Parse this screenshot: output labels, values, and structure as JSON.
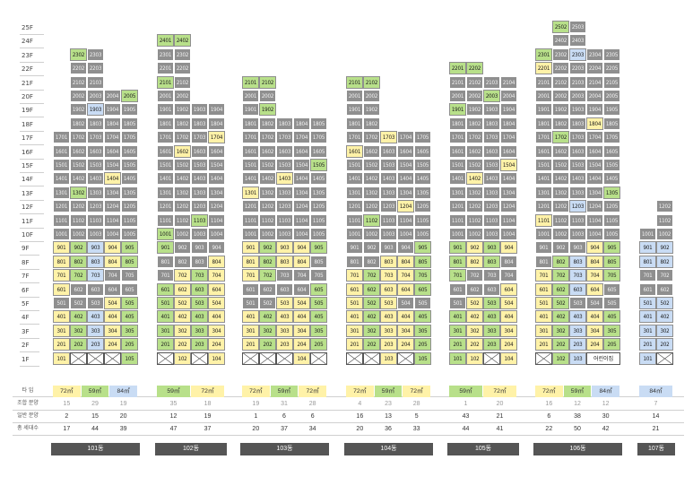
{
  "floors": [
    "25F",
    "24F",
    "23F",
    "22F",
    "21F",
    "20F",
    "19F",
    "18F",
    "17F",
    "16F",
    "15F",
    "14F",
    "13F",
    "12F",
    "11F",
    "10F",
    "9F",
    "8F",
    "7F",
    "6F",
    "5F",
    "4F",
    "3F",
    "2F",
    "1F"
  ],
  "legend_colors": {
    "gray": "#8f8f8f",
    "yellow": "#fff2a8",
    "green": "#b8e08a",
    "blue": "#c9dcf4"
  },
  "summary_labels": {
    "type": "타 입",
    "union": "조합 분양",
    "general": "일반 분양",
    "total": "총 세대수"
  },
  "buildings": [
    {
      "name": "101동",
      "x": 59,
      "lines": [
        "01",
        "02",
        "03",
        "04",
        "05"
      ],
      "max": [
        17,
        23,
        23,
        20,
        20
      ],
      "types": [
        {
          "label": "72㎡",
          "color": "yellow"
        },
        {
          "label": "59㎡",
          "color": "green"
        },
        {
          "label": "84㎡",
          "color": "blue"
        }
      ],
      "union": [
        "15",
        "29",
        "19"
      ],
      "general": [
        "2",
        "15",
        "20"
      ],
      "total": [
        "17",
        "44",
        "39"
      ]
    },
    {
      "name": "102동",
      "x": 175,
      "lines": [
        "01",
        "02",
        "03",
        "04"
      ],
      "max": [
        24,
        24,
        19,
        19
      ],
      "types": [
        {
          "label": "59㎡",
          "color": "green"
        },
        {
          "label": "72㎡",
          "color": "yellow"
        }
      ],
      "union": [
        "35",
        "18"
      ],
      "general": [
        "12",
        "19"
      ],
      "total": [
        "47",
        "37"
      ]
    },
    {
      "name": "103동",
      "x": 270,
      "lines": [
        "01",
        "02",
        "03",
        "04",
        "05"
      ],
      "max": [
        21,
        21,
        18,
        18,
        18
      ],
      "types": [
        {
          "label": "72㎡",
          "color": "yellow"
        },
        {
          "label": "59㎡",
          "color": "green"
        },
        {
          "label": "72㎡",
          "color": "yellow"
        }
      ],
      "union": [
        "19",
        "31",
        "28"
      ],
      "general": [
        "1",
        "6",
        "6"
      ],
      "total": [
        "20",
        "37",
        "34"
      ]
    },
    {
      "name": "104동",
      "x": 386,
      "lines": [
        "01",
        "02",
        "03",
        "04",
        "05"
      ],
      "max": [
        21,
        21,
        17,
        17,
        17
      ],
      "types": [
        {
          "label": "72㎡",
          "color": "yellow"
        },
        {
          "label": "59㎡",
          "color": "green"
        },
        {
          "label": "72㎡",
          "color": "yellow"
        }
      ],
      "union": [
        "4",
        "23",
        "28"
      ],
      "general": [
        "16",
        "13",
        "5"
      ],
      "total": [
        "20",
        "36",
        "33"
      ]
    },
    {
      "name": "105동",
      "x": 501,
      "lines": [
        "01",
        "02",
        "03",
        "04"
      ],
      "max": [
        22,
        22,
        21,
        21
      ],
      "types": [
        {
          "label": "59㎡",
          "color": "green"
        },
        {
          "label": "72㎡",
          "color": "yellow"
        }
      ],
      "union": [
        "1",
        "20"
      ],
      "general": [
        "43",
        "21"
      ],
      "total": [
        "44",
        "41"
      ]
    },
    {
      "name": "106동",
      "x": 597,
      "lines": [
        "01",
        "02",
        "03",
        "04",
        "05"
      ],
      "max": [
        23,
        25,
        25,
        23,
        23
      ],
      "types": [
        {
          "label": "72㎡",
          "color": "yellow"
        },
        {
          "label": "59㎡",
          "color": "green"
        },
        {
          "label": "84㎡",
          "color": "blue"
        }
      ],
      "union": [
        "16",
        "12",
        "12"
      ],
      "general": [
        "6",
        "38",
        "30"
      ],
      "total": [
        "22",
        "50",
        "42"
      ]
    },
    {
      "name": "107동",
      "x": 713,
      "lines": [
        "01",
        "02"
      ],
      "max": [
        10,
        12
      ],
      "types": [
        {
          "label": "84㎡",
          "color": "blue"
        }
      ],
      "union": [
        "7"
      ],
      "general": [
        "14"
      ],
      "total": [
        "21"
      ]
    }
  ],
  "special_text": {
    "daycare": "어린이집"
  }
}
